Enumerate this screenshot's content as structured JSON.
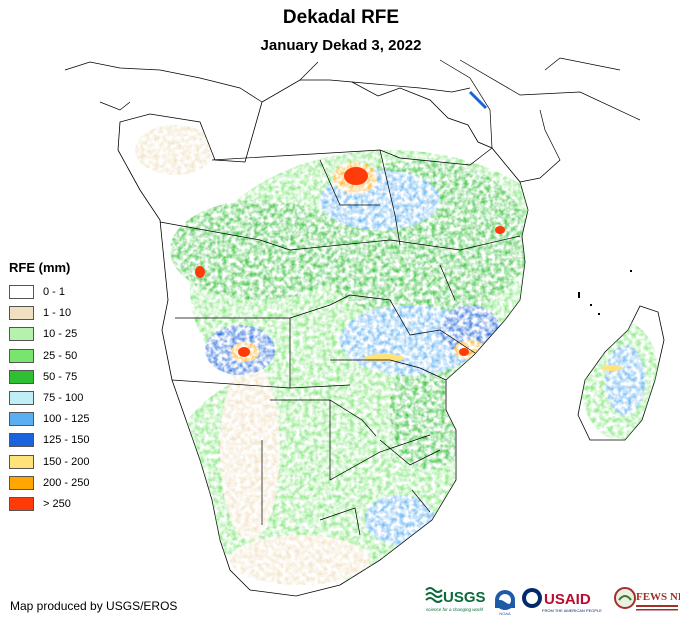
{
  "header": {
    "title": "Dekadal RFE",
    "subtitle": "January Dekad 3, 2022"
  },
  "legend": {
    "title": "RFE (mm)",
    "items": [
      {
        "label": "0 - 1",
        "color": "#ffffff"
      },
      {
        "label": "1 - 10",
        "color": "#f0dfc0"
      },
      {
        "label": "10 - 25",
        "color": "#b6f2ae"
      },
      {
        "label": "25 - 50",
        "color": "#77e56e"
      },
      {
        "label": "50 - 75",
        "color": "#2fbf34"
      },
      {
        "label": "75 - 100",
        "color": "#bfeef6"
      },
      {
        "label": "100 - 125",
        "color": "#5aaef2"
      },
      {
        "label": "125 - 150",
        "color": "#1b63dc"
      },
      {
        "label": "150 - 200",
        "color": "#ffe37a"
      },
      {
        "label": "200 - 250",
        "color": "#ffa600"
      },
      {
        "label": "> 250",
        "color": "#ff3b0a"
      }
    ]
  },
  "footer": {
    "credit": "Map produced by USGS/EROS"
  },
  "logos": {
    "usgs": "USGS",
    "usgs_tagline": "science for a changing world",
    "noaa": "NOAA",
    "usaid": "USAID",
    "usaid_tagline": "FROM THE AMERICAN PEOPLE",
    "fewsnet": "FEWS NET"
  }
}
